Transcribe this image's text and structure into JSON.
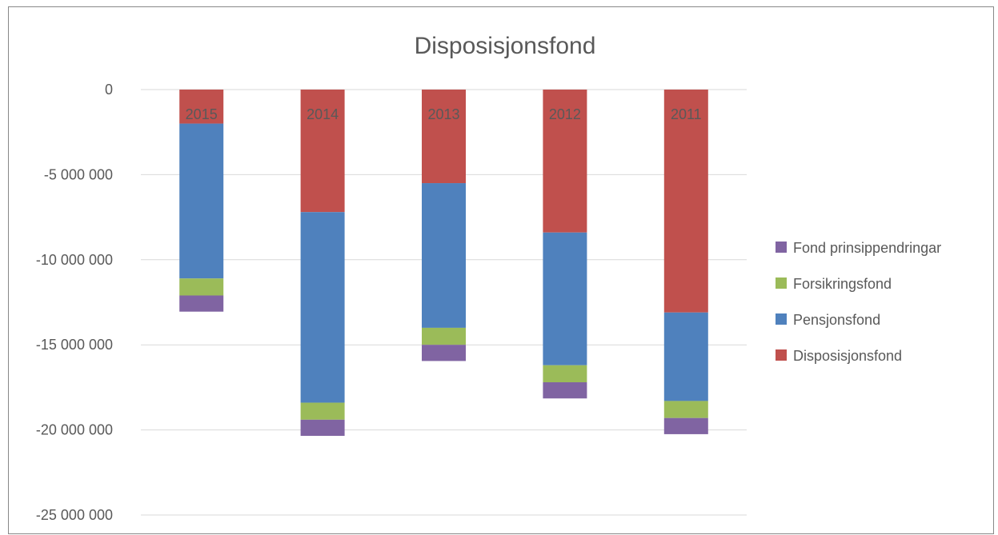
{
  "chart_data": {
    "type": "bar",
    "stacked": true,
    "title": "Disposisjonsfond",
    "xlabel": "",
    "ylabel": "",
    "categories": [
      "2015",
      "2014",
      "2013",
      "2012",
      "2011"
    ],
    "ylim": [
      -25000000,
      0
    ],
    "yticks": [
      0,
      -5000000,
      -10000000,
      -15000000,
      -20000000,
      -25000000
    ],
    "ytick_labels": [
      "0",
      "-5 000 000",
      "-10 000 000",
      "-15 000 000",
      "-20 000 000",
      "-25 000 000"
    ],
    "grid": true,
    "category_labels_position": "inside-top-of-bars",
    "legend_position": "right",
    "series": [
      {
        "name": "Disposisjonsfond",
        "color": "#C0504D",
        "values": [
          -2000000,
          -7200000,
          -5500000,
          -8400000,
          -13100000
        ]
      },
      {
        "name": "Pensjonsfond",
        "color": "#4F81BD",
        "values": [
          -9100000,
          -11200000,
          -8500000,
          -7800000,
          -5200000
        ]
      },
      {
        "name": "Forsikringsfond",
        "color": "#9BBB59",
        "values": [
          -1000000,
          -1000000,
          -1000000,
          -1000000,
          -1000000
        ]
      },
      {
        "name": "Fond prinsippendringar",
        "color": "#8064A2",
        "values": [
          -950000,
          -950000,
          -950000,
          -950000,
          -950000
        ]
      }
    ],
    "legend_order": [
      "Fond prinsippendringar",
      "Forsikringsfond",
      "Pensjonsfond",
      "Disposisjonsfond"
    ]
  }
}
